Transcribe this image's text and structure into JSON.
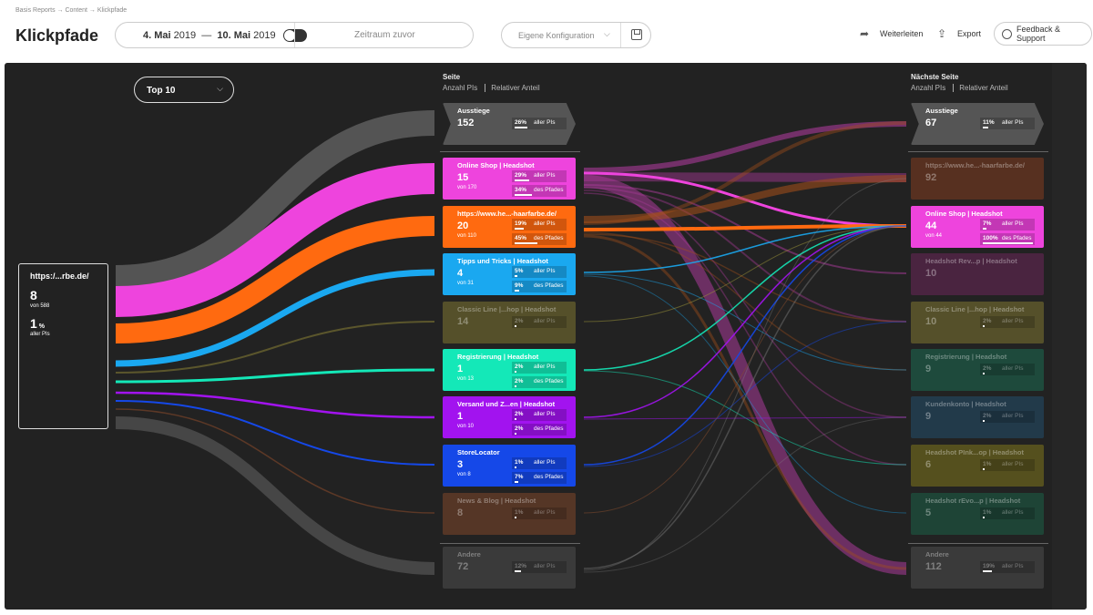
{
  "breadcrumb": "Basis Reports → Content → Klickpfade",
  "title": "Klickpfade",
  "date": {
    "start": "4. Mai",
    "start_year": "2019",
    "dash": "—",
    "end": "10. Mai",
    "end_year": "2019",
    "compare_label": "Zeitraum zuvor"
  },
  "config": {
    "label": "Eigene Konfiguration"
  },
  "actions": {
    "forward": "Weiterleiten",
    "export": "Export",
    "feedback": "Feedback & Support"
  },
  "topselect": "Top 10",
  "col_mid": {
    "title": "Seite",
    "a": "Anzahl PIs",
    "b": "Relativer Anteil"
  },
  "col_right": {
    "title": "Nächste Seite",
    "a": "Anzahl PIs",
    "b": "Relativer Anteil"
  },
  "source": {
    "name": "https:/...rbe.de/",
    "count": "8",
    "of": "von 588",
    "pct": "1",
    "pct_unit": "%",
    "pct_label": "aller PIs"
  },
  "mid_nodes": [
    {
      "name": "Ausstiege",
      "value": "152",
      "of": "",
      "p1": "26%",
      "l1": "aller PIs",
      "p2": "",
      "l2": "",
      "color": "#555555",
      "dim": false,
      "exit": true
    },
    {
      "name": "Online Shop | Headshot",
      "value": "15",
      "of": "von 170",
      "p1": "29%",
      "l1": "aller PIs",
      "p2": "34%",
      "l2": "des Pfades",
      "color": "#ee44dd",
      "dim": false
    },
    {
      "name": "https://www.he...-haarfarbe.de/",
      "value": "20",
      "of": "von 110",
      "p1": "19%",
      "l1": "aller PIs",
      "p2": "45%",
      "l2": "des Pfades",
      "color": "#ff6a10",
      "dim": false
    },
    {
      "name": "Tipps und Tricks | Headshot",
      "value": "4",
      "of": "von 31",
      "p1": "5%",
      "l1": "aller PIs",
      "p2": "9%",
      "l2": "des Pfades",
      "color": "#1aa8f0",
      "dim": false
    },
    {
      "name": "Classic Line |...hop | Headshot",
      "value": "14",
      "of": "",
      "p1": "2%",
      "l1": "aller PIs",
      "p2": "",
      "l2": "",
      "color": "#55502a",
      "dim": true
    },
    {
      "name": "Registrierung | Headshot",
      "value": "1",
      "of": "von 13",
      "p1": "2%",
      "l1": "aller PIs",
      "p2": "2%",
      "l2": "des Pfades",
      "color": "#14e8b8",
      "dim": false
    },
    {
      "name": "Versand und Z...en | Headshot",
      "value": "1",
      "of": "von 10",
      "p1": "2%",
      "l1": "aller PIs",
      "p2": "2%",
      "l2": "des Pfades",
      "color": "#a213ef",
      "dim": false
    },
    {
      "name": "StoreLocator",
      "value": "3",
      "of": "von 8",
      "p1": "1%",
      "l1": "aller PIs",
      "p2": "7%",
      "l2": "des Pfades",
      "color": "#1548e8",
      "dim": false
    },
    {
      "name": "News & Blog | Headshot",
      "value": "8",
      "of": "",
      "p1": "1%",
      "l1": "aller PIs",
      "p2": "",
      "l2": "",
      "color": "#553626",
      "dim": true
    },
    {
      "name": "Andere",
      "value": "72",
      "of": "",
      "p1": "12%",
      "l1": "aller PIs",
      "p2": "",
      "l2": "",
      "color": "#3a3a3a",
      "dim": true
    }
  ],
  "right_nodes": [
    {
      "name": "Ausstiege",
      "value": "67",
      "of": "",
      "p1": "11%",
      "l1": "aller PIs",
      "p2": "",
      "l2": "",
      "color": "#555555",
      "dim": false,
      "exit": true
    },
    {
      "name": "https://www.he...-haarfarbe.de/",
      "value": "92",
      "of": "",
      "p1": "",
      "l1": "",
      "p2": "",
      "l2": "",
      "color": "#573020",
      "dim": true
    },
    {
      "name": "Online Shop | Headshot",
      "value": "44",
      "of": "von 44",
      "p1": "7%",
      "l1": "aller PIs",
      "p2": "100%",
      "l2": "des Pfades",
      "color": "#ee44dd",
      "dim": false
    },
    {
      "name": "Headshot Rev...p | Headshot",
      "value": "10",
      "of": "",
      "p1": "",
      "l1": "",
      "p2": "",
      "l2": "",
      "color": "#4a2440",
      "dim": true
    },
    {
      "name": "Classic Line |...hop | Headshot",
      "value": "10",
      "of": "",
      "p1": "2%",
      "l1": "aller PIs",
      "p2": "",
      "l2": "",
      "color": "#55502a",
      "dim": true
    },
    {
      "name": "Registrierung | Headshot",
      "value": "9",
      "of": "",
      "p1": "2%",
      "l1": "aller PIs",
      "p2": "",
      "l2": "",
      "color": "#1e4a3c",
      "dim": true
    },
    {
      "name": "Kundenkonto | Headshot",
      "value": "9",
      "of": "",
      "p1": "2%",
      "l1": "aller PIs",
      "p2": "",
      "l2": "",
      "color": "#223a4a",
      "dim": true
    },
    {
      "name": "Headshot PInk...op | Headshot",
      "value": "6",
      "of": "",
      "p1": "1%",
      "l1": "aller PIs",
      "p2": "",
      "l2": "",
      "color": "#55501e",
      "dim": true
    },
    {
      "name": "Headshot rEvo...p | Headshot",
      "value": "5",
      "of": "",
      "p1": "1%",
      "l1": "aller PIs",
      "p2": "",
      "l2": "",
      "color": "#1e4436",
      "dim": true
    },
    {
      "name": "Andere",
      "value": "112",
      "of": "",
      "p1": "19%",
      "l1": "aller PIs",
      "p2": "",
      "l2": "",
      "color": "#3a3a3a",
      "dim": true
    }
  ]
}
